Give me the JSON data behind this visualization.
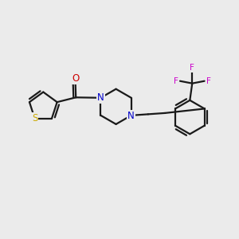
{
  "background_color": "#ebebeb",
  "bond_color": "#1a1a1a",
  "bond_width": 1.6,
  "S_color": "#ccaa00",
  "N_color": "#0000cc",
  "O_color": "#cc0000",
  "F_color": "#cc00cc",
  "font_size_atom": 8.5,
  "font_size_F": 7.5,
  "xlim": [
    0,
    10
  ],
  "ylim": [
    0,
    10
  ]
}
